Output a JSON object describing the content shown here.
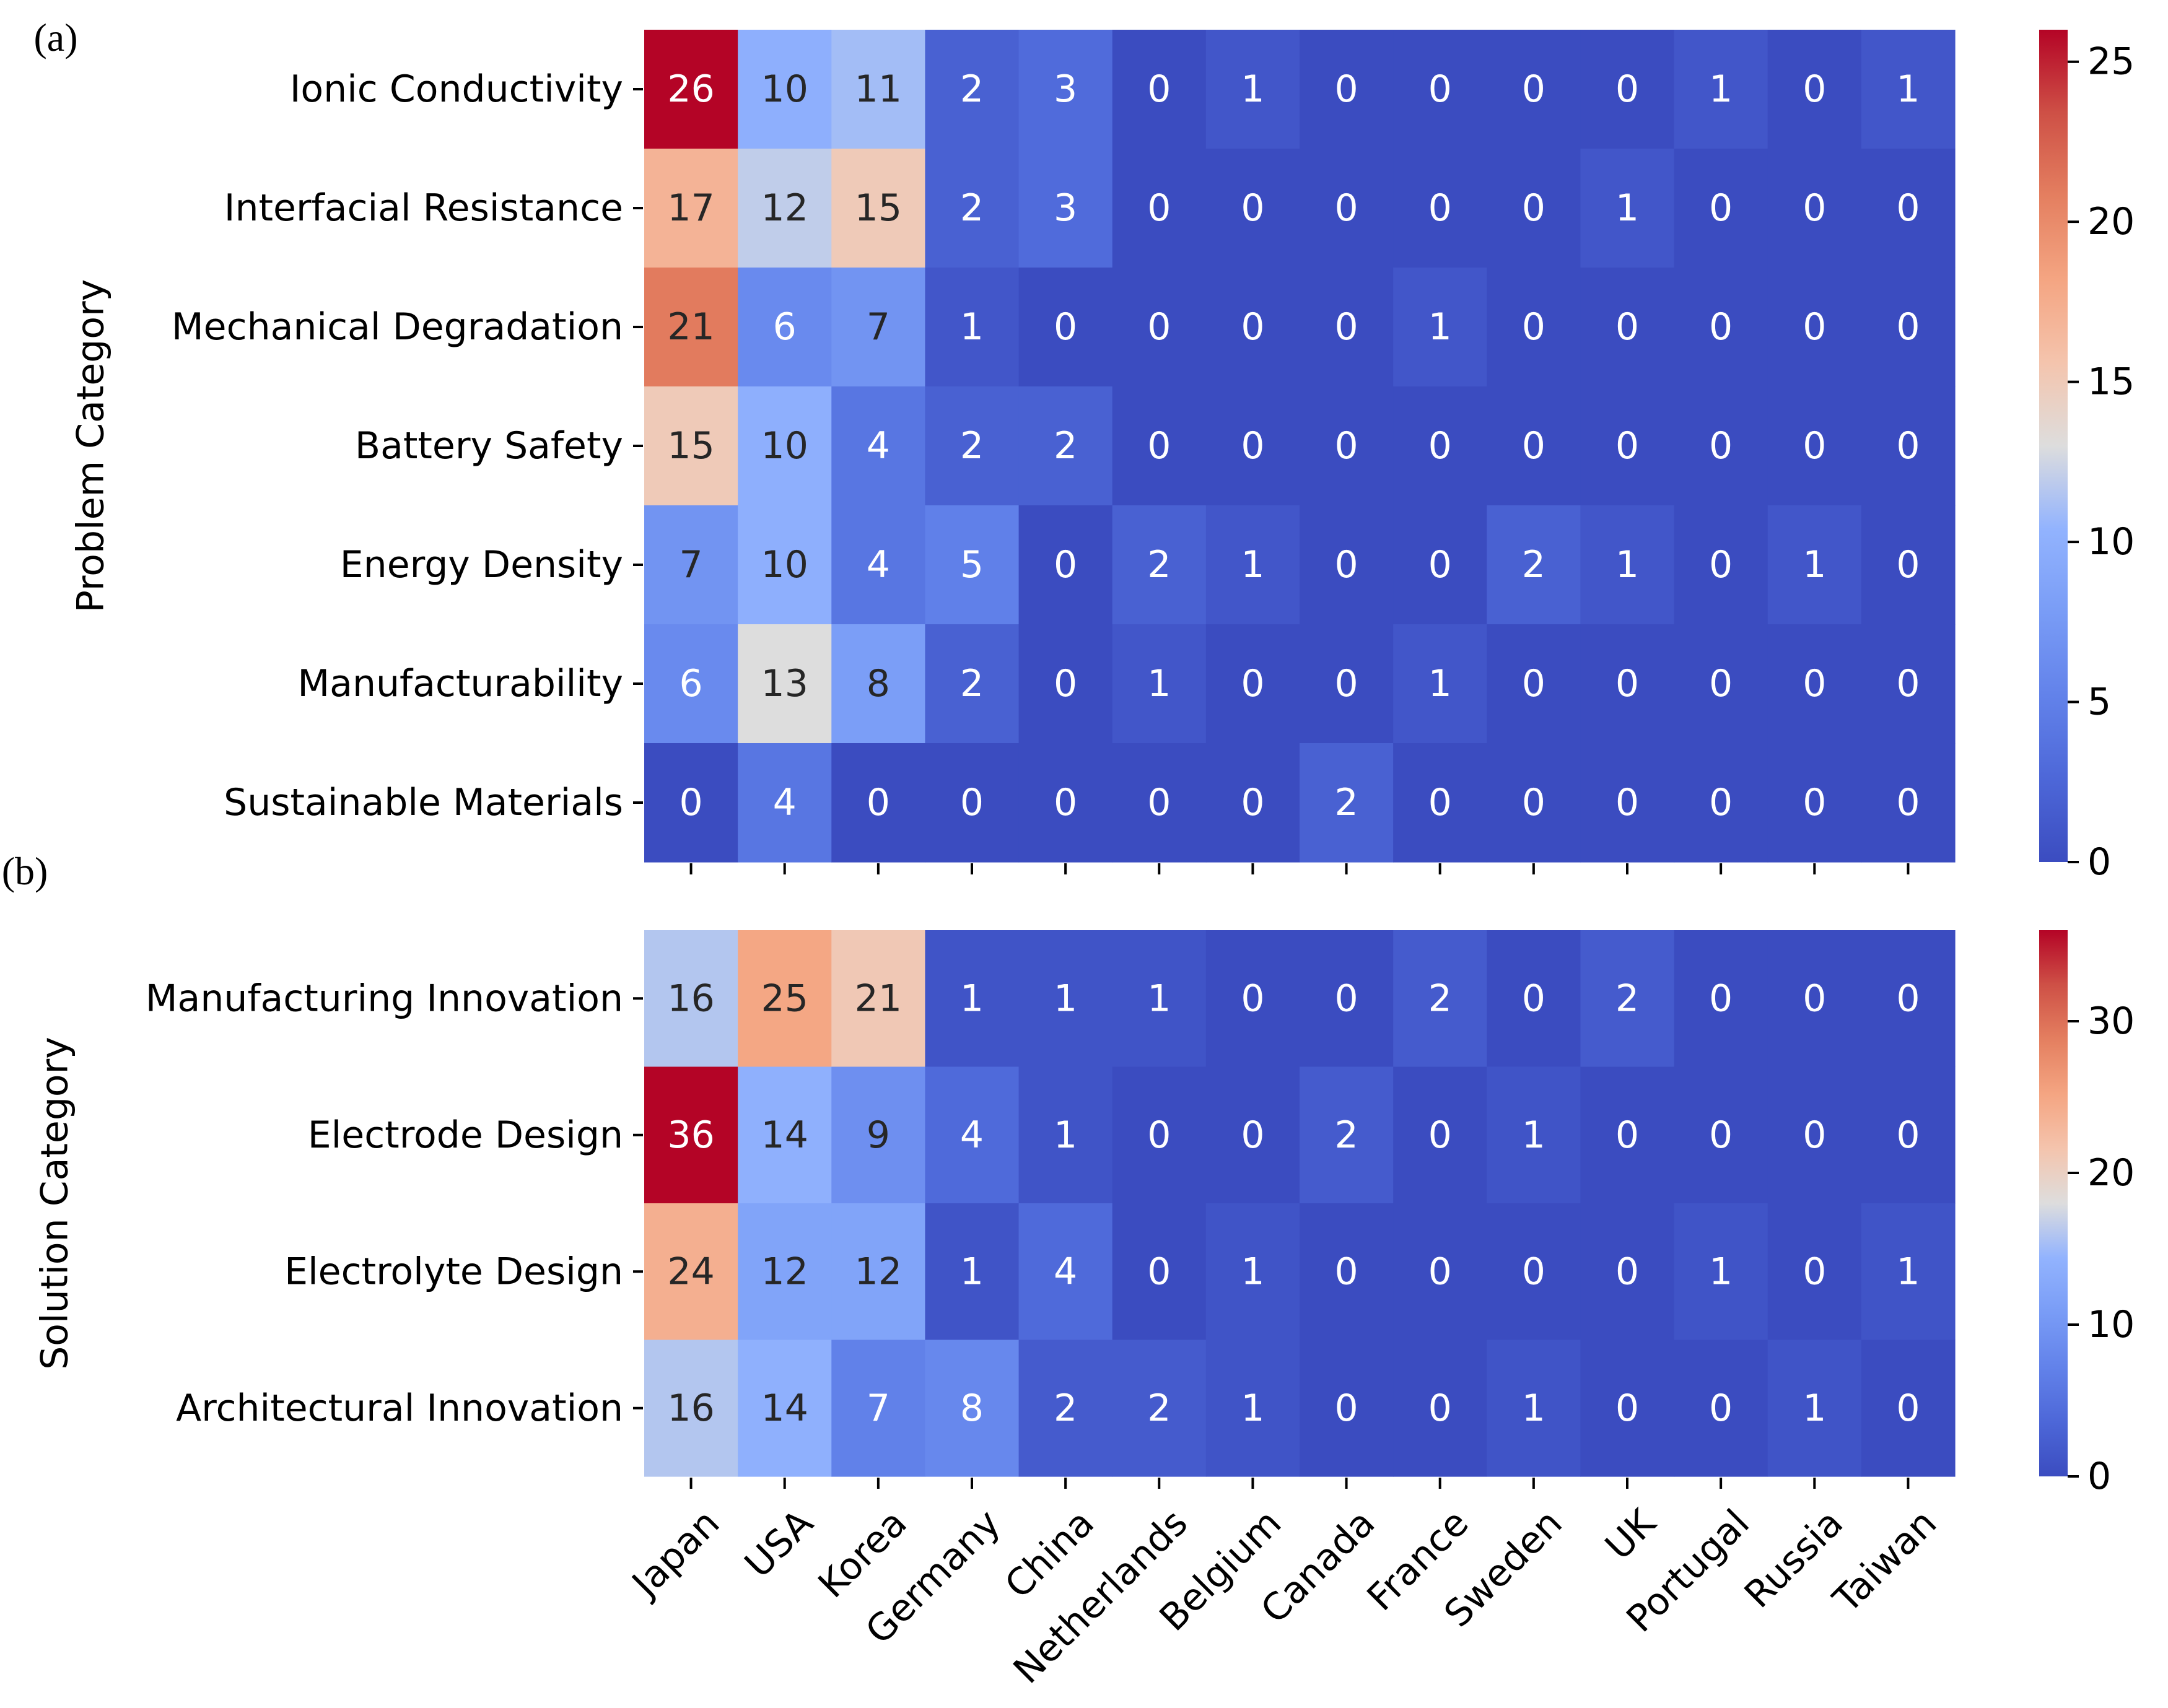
{
  "chart_data": [
    {
      "type": "heatmap",
      "panel_label": "(a)",
      "ylabel": "Problem Category",
      "xlabel": "",
      "columns": [
        "Japan",
        "USA",
        "Korea",
        "Germany",
        "China",
        "Netherlands",
        "Belgium",
        "Canada",
        "France",
        "Sweden",
        "UK",
        "Portugal",
        "Russia",
        "Taiwan"
      ],
      "rows": [
        "Ionic Conductivity",
        "Interfacial Resistance",
        "Mechanical Degradation",
        "Battery Safety",
        "Energy Density",
        "Manufacturability",
        "Sustainable Materials"
      ],
      "values": [
        [
          26,
          10,
          11,
          2,
          3,
          0,
          1,
          0,
          0,
          0,
          0,
          1,
          0,
          1
        ],
        [
          17,
          12,
          15,
          2,
          3,
          0,
          0,
          0,
          0,
          0,
          1,
          0,
          0,
          0
        ],
        [
          21,
          6,
          7,
          1,
          0,
          0,
          0,
          0,
          1,
          0,
          0,
          0,
          0,
          0
        ],
        [
          15,
          10,
          4,
          2,
          2,
          0,
          0,
          0,
          0,
          0,
          0,
          0,
          0,
          0
        ],
        [
          7,
          10,
          4,
          5,
          0,
          2,
          1,
          0,
          0,
          2,
          1,
          0,
          1,
          0
        ],
        [
          6,
          13,
          8,
          2,
          0,
          1,
          0,
          0,
          1,
          0,
          0,
          0,
          0,
          0
        ],
        [
          0,
          4,
          0,
          0,
          0,
          0,
          0,
          2,
          0,
          0,
          0,
          0,
          0,
          0
        ]
      ],
      "colormap": "coolwarm",
      "vmin": 0,
      "vmax": 26,
      "colorbar_ticks": [
        0,
        5,
        10,
        15,
        20,
        25
      ],
      "show_x_tick_labels": false
    },
    {
      "type": "heatmap",
      "panel_label": "(b)",
      "ylabel": "Solution Category",
      "xlabel": "",
      "columns": [
        "Japan",
        "USA",
        "Korea",
        "Germany",
        "China",
        "Netherlands",
        "Belgium",
        "Canada",
        "France",
        "Sweden",
        "UK",
        "Portugal",
        "Russia",
        "Taiwan"
      ],
      "rows": [
        "Manufacturing Innovation",
        "Electrode Design",
        "Electrolyte Design",
        "Architectural Innovation"
      ],
      "values": [
        [
          16,
          25,
          21,
          1,
          1,
          1,
          0,
          0,
          2,
          0,
          2,
          0,
          0,
          0
        ],
        [
          36,
          14,
          9,
          4,
          1,
          0,
          0,
          2,
          0,
          1,
          0,
          0,
          0,
          0
        ],
        [
          24,
          12,
          12,
          1,
          4,
          0,
          1,
          0,
          0,
          0,
          0,
          1,
          0,
          1
        ],
        [
          16,
          14,
          7,
          8,
          2,
          2,
          1,
          0,
          0,
          1,
          0,
          0,
          1,
          0
        ]
      ],
      "colormap": "coolwarm",
      "vmin": 0,
      "vmax": 36,
      "colorbar_ticks": [
        0,
        10,
        20,
        30
      ],
      "show_x_tick_labels": true
    }
  ]
}
